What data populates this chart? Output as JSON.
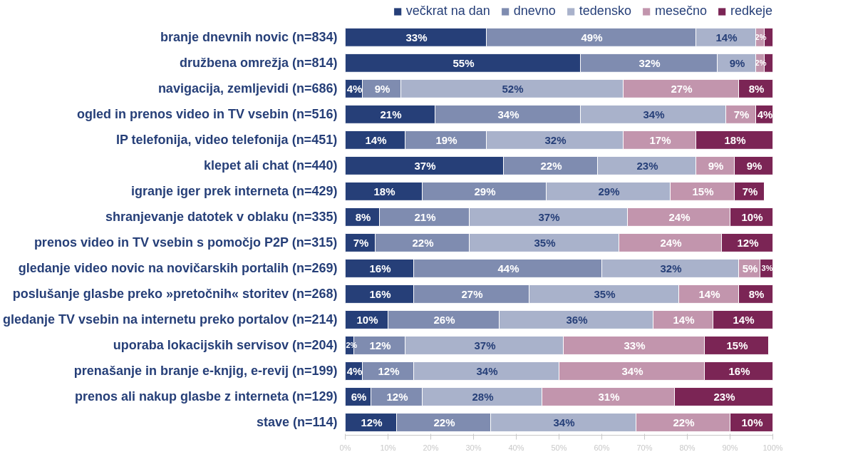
{
  "chart_data": {
    "type": "bar",
    "orientation": "horizontal",
    "stacked": true,
    "legend": "top right",
    "grid": false,
    "categories": [
      "branje dnevnih novic (n=834)",
      "družbena omrežja (n=814)",
      "navigacija, zemljevidi (n=686)",
      "ogled in prenos video in TV vsebin (n=516)",
      "IP telefonija, video telefonija (n=451)",
      "klepet ali chat (n=440)",
      "igranje iger prek interneta (n=429)",
      "shranjevanje datotek v oblaku (n=335)",
      "prenos video in TV vsebin s pomočjo P2P (n=315)",
      "gledanje video novic na novičarskih portalih (n=269)",
      "poslušanje glasbe preko »pretočnih« storitev (n=268)",
      "gledanje TV vsebin na internetu preko portalov (n=214)",
      "uporaba lokacijskih servisov (n=204)",
      "prenašanje in branje e-knjig, e-revij (n=199)",
      "prenos ali nakup glasbe z interneta (n=129)",
      "stave (n=114)"
    ],
    "xlim": [
      0,
      100
    ],
    "xticks": [
      {
        "value": 0,
        "label": "0%"
      },
      {
        "value": 10,
        "label": "10%"
      },
      {
        "value": 20,
        "label": "20%"
      },
      {
        "value": 30,
        "label": "30%"
      },
      {
        "value": 40,
        "label": "40%"
      },
      {
        "value": 50,
        "label": "50%"
      },
      {
        "value": 60,
        "label": "60%"
      },
      {
        "value": 70,
        "label": "70%"
      },
      {
        "value": 80,
        "label": "80%"
      },
      {
        "value": 90,
        "label": "90%"
      },
      {
        "value": 100,
        "label": "100%"
      }
    ],
    "series": [
      {
        "name": "večkrat na dan",
        "color": "#263f78",
        "values": [
          33,
          55,
          4,
          21,
          14,
          37,
          18,
          8,
          7,
          16,
          16,
          10,
          2,
          4,
          6,
          12
        ],
        "value_labels": [
          "33%",
          "55%",
          "4%",
          "21%",
          "14%",
          "37%",
          "18%",
          "8%",
          "7%",
          "16%",
          "16%",
          "10%",
          "2%",
          "4%",
          "6%",
          "12%"
        ]
      },
      {
        "name": "dnevno",
        "color": "#7f8cb0",
        "values": [
          49,
          32,
          9,
          34,
          19,
          22,
          29,
          21,
          22,
          44,
          27,
          26,
          12,
          12,
          12,
          22
        ],
        "value_labels": [
          "49%",
          "32%",
          "9%",
          "34%",
          "19%",
          "22%",
          "29%",
          "21%",
          "22%",
          "44%",
          "27%",
          "26%",
          "12%",
          "12%",
          "12%",
          "22%"
        ]
      },
      {
        "name": "tedensko",
        "color": "#a9b2cb",
        "values": [
          14,
          9,
          52,
          34,
          32,
          23,
          29,
          37,
          35,
          32,
          35,
          36,
          37,
          34,
          28,
          34
        ],
        "value_labels": [
          "14%",
          "9%",
          "52%",
          "34%",
          "32%",
          "23%",
          "29%",
          "37%",
          "35%",
          "32%",
          "35%",
          "36%",
          "37%",
          "34%",
          "28%",
          "34%"
        ]
      },
      {
        "name": "mesečno",
        "color": "#c295ad",
        "values": [
          2,
          2,
          27,
          7,
          17,
          9,
          15,
          24,
          24,
          5,
          14,
          14,
          33,
          34,
          31,
          22
        ],
        "value_labels": [
          "2%",
          "2%",
          "27%",
          "7%",
          "17%",
          "9%",
          "15%",
          "24%",
          "24%",
          "5%",
          "14%",
          "14%",
          "33%",
          "34%",
          "31%",
          "22%"
        ]
      },
      {
        "name": "redkeje",
        "color": "#7b2555",
        "values": [
          2,
          2,
          8,
          4,
          18,
          9,
          7,
          10,
          12,
          3,
          8,
          14,
          15,
          16,
          23,
          10
        ],
        "value_labels": [
          null,
          null,
          "8%",
          "4%",
          "18%",
          "9%",
          "7%",
          "10%",
          "12%",
          "3%",
          "8%",
          "14%",
          "15%",
          "16%",
          "23%",
          "10%"
        ]
      }
    ]
  }
}
